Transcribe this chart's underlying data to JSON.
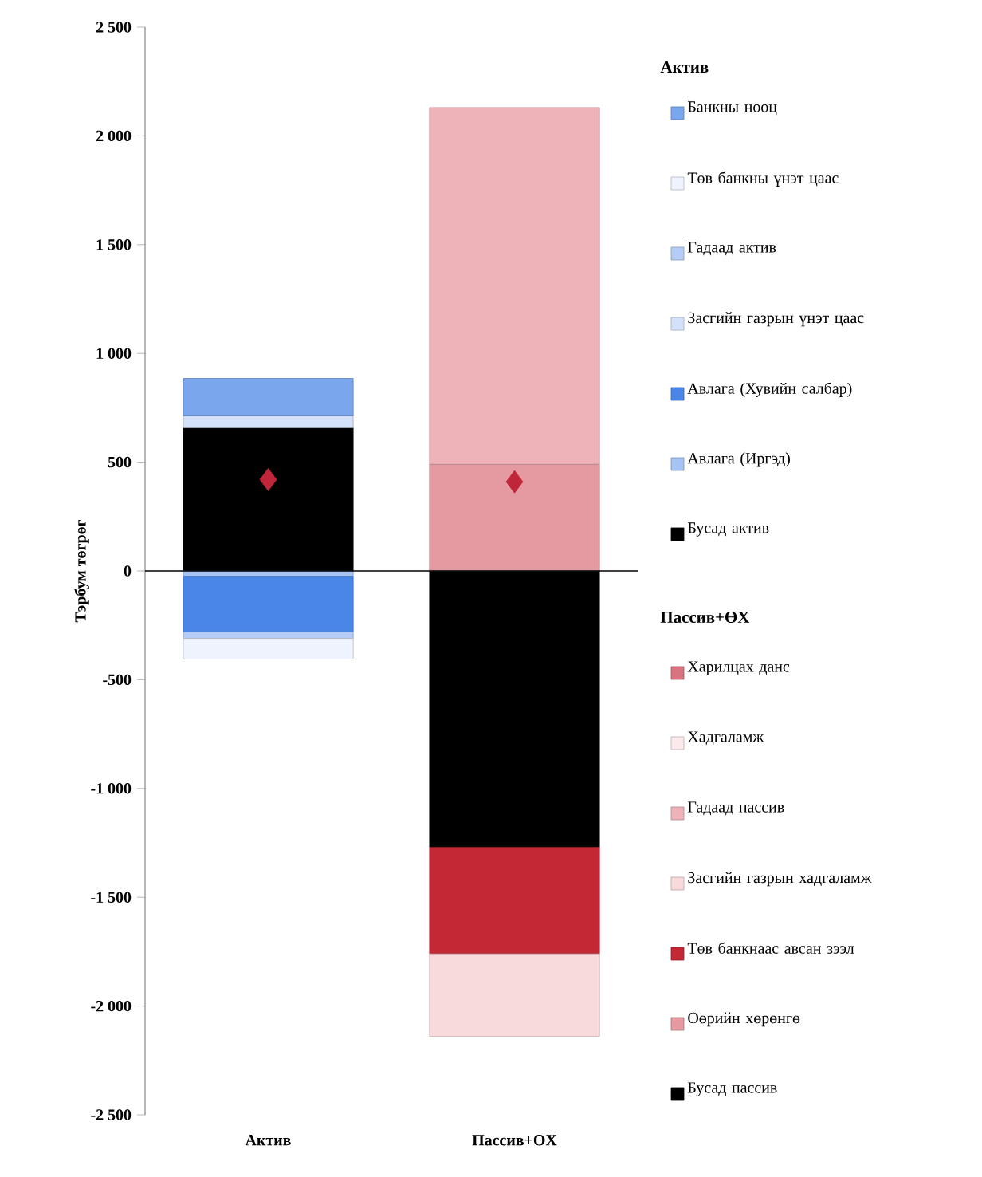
{
  "chart_data": {
    "type": "bar",
    "stacked": true,
    "legend": "right",
    "marker": "diamond",
    "ylabel": "Тэрбум төгрөг",
    "annotations": [
      "Актив",
      "Пассив+ӨХ"
    ],
    "categories": [
      "Актив",
      "Пассив+ӨХ"
    ],
    "ylim": [
      -2500,
      2500
    ],
    "yticks": [
      {
        "value": -2500,
        "label": "-2 500"
      },
      {
        "value": -2000,
        "label": "-2 000"
      },
      {
        "value": -1500,
        "label": "-1 500"
      },
      {
        "value": -1000,
        "label": "-1 000"
      },
      -500,
      0,
      500,
      {
        "value": 1000,
        "label": "1 000"
      },
      {
        "value": 1500,
        "label": "1 500"
      },
      {
        "value": 2000,
        "label": "2 000"
      },
      {
        "value": 2500,
        "label": "2 500"
      }
    ],
    "series": [
      {
        "name": "Бусад актив",
        "color": "#000000",
        "values": [
          658,
          null
        ]
      },
      {
        "name": "Авлага (Иргэд)",
        "color": "#a6c3f3",
        "values": [
          -25,
          null
        ]
      },
      {
        "name": "Авлага (Хувийн салбар)",
        "color": "#4a86e8",
        "values": [
          -255,
          null
        ]
      },
      {
        "name": "Засгийн газрын үнэт цаас",
        "color": "#d3e2fa",
        "values": [
          55,
          null
        ]
      },
      {
        "name": "Гадаад актив",
        "color": "#b5cdf6",
        "values": [
          -30,
          null
        ]
      },
      {
        "name": "Төв банкны үнэт цаас",
        "color": "#eef3fd",
        "values": [
          -95,
          null
        ]
      },
      {
        "name": "Банкны нөөц",
        "color": "#7aa6ee",
        "values": [
          172,
          null
        ]
      },
      {
        "name": "Бусад пассив",
        "color": "#000000",
        "values": [
          null,
          -1270
        ]
      },
      {
        "name": "Өөрийн хөрөнгө",
        "color": "#e59aa2",
        "values": [
          null,
          490
        ]
      },
      {
        "name": "Төв банкнаас авсан зээл",
        "color": "#c42835",
        "values": [
          null,
          -490
        ]
      },
      {
        "name": "Засгийн газрын хадгаламж",
        "color": "#f8dadd",
        "values": [
          null,
          -380
        ]
      },
      {
        "name": "Гадаад пассив",
        "color": "#eeb3b9",
        "values": [
          null,
          1640
        ]
      },
      {
        "name": "Хадгаламж",
        "color": "#fbe9eb",
        "values": [
          null,
          null
        ]
      },
      {
        "name": "Харилцах данс",
        "color": "#d9737f",
        "values": [
          null,
          null
        ]
      },
      {
        "type": "scatter",
        "color": "#c0263a",
        "values": [
          420,
          410
        ]
      }
    ]
  }
}
